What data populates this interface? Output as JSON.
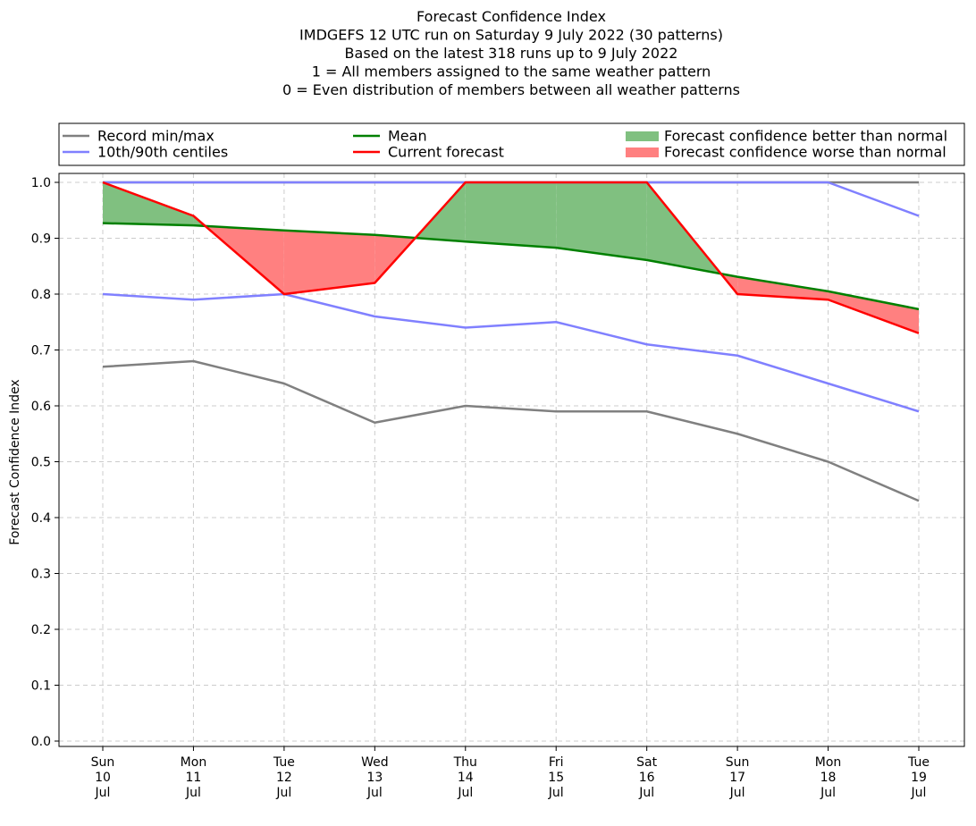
{
  "chart_data": {
    "type": "line",
    "title_lines": [
      "Forecast Confidence Index",
      "IMDGEFS 12 UTC run on Saturday 9 July 2022 (30 patterns)",
      "Based on the latest 318 runs up to 9 July 2022",
      "1 = All members assigned to the same weather pattern",
      "0 = Even distribution of members between all weather patterns"
    ],
    "xlabel": "",
    "ylabel": "Forecast Confidence Index",
    "ylim": [
      0,
      1.0
    ],
    "yticks": [
      "0.0",
      "0.1",
      "0.2",
      "0.3",
      "0.4",
      "0.5",
      "0.6",
      "0.7",
      "0.8",
      "0.9",
      "1.0"
    ],
    "grid": true,
    "legend_position": "top",
    "categories": [
      [
        "Sun",
        "10",
        "Jul"
      ],
      [
        "Mon",
        "11",
        "Jul"
      ],
      [
        "Tue",
        "12",
        "Jul"
      ],
      [
        "Wed",
        "13",
        "Jul"
      ],
      [
        "Thu",
        "14",
        "Jul"
      ],
      [
        "Fri",
        "15",
        "Jul"
      ],
      [
        "Sat",
        "16",
        "Jul"
      ],
      [
        "Sun",
        "17",
        "Jul"
      ],
      [
        "Mon",
        "18",
        "Jul"
      ],
      [
        "Tue",
        "19",
        "Jul"
      ]
    ],
    "series": [
      {
        "key": "record_min",
        "values": [
          0.67,
          0.68,
          0.64,
          0.57,
          0.6,
          0.59,
          0.59,
          0.55,
          0.5,
          0.43
        ],
        "color": "#808080"
      },
      {
        "key": "record_max",
        "values": [
          1.0,
          1.0,
          1.0,
          1.0,
          1.0,
          1.0,
          1.0,
          1.0,
          1.0,
          1.0
        ],
        "color": "#808080"
      },
      {
        "key": "p10",
        "values": [
          0.8,
          0.79,
          0.8,
          0.76,
          0.74,
          0.75,
          0.71,
          0.69,
          0.64,
          0.59
        ],
        "color": "#8080ff"
      },
      {
        "key": "p90",
        "values": [
          1.0,
          1.0,
          1.0,
          1.0,
          1.0,
          1.0,
          1.0,
          1.0,
          1.0,
          0.94
        ],
        "color": "#8080ff"
      },
      {
        "key": "mean",
        "values": [
          0.927,
          0.923,
          0.914,
          0.906,
          0.894,
          0.883,
          0.861,
          0.831,
          0.805,
          0.773
        ],
        "color": "#008000"
      },
      {
        "key": "current",
        "values": [
          1.0,
          0.94,
          0.8,
          0.82,
          1.0,
          1.0,
          1.0,
          0.8,
          0.79,
          0.73
        ],
        "color": "#ff0000"
      }
    ],
    "legend": [
      {
        "label": "Record min/max",
        "kind": "line",
        "color": "#808080"
      },
      {
        "label": "10th/90th centiles",
        "kind": "line",
        "color": "#8080ff"
      },
      {
        "label": "Mean",
        "kind": "line",
        "color": "#008000"
      },
      {
        "label": "Current forecast",
        "kind": "line",
        "color": "#ff0000"
      },
      {
        "label": "Forecast confidence better than normal",
        "kind": "patch",
        "color": "#80c080"
      },
      {
        "label": "Forecast confidence worse than normal",
        "kind": "patch",
        "color": "#ff8080"
      }
    ]
  }
}
